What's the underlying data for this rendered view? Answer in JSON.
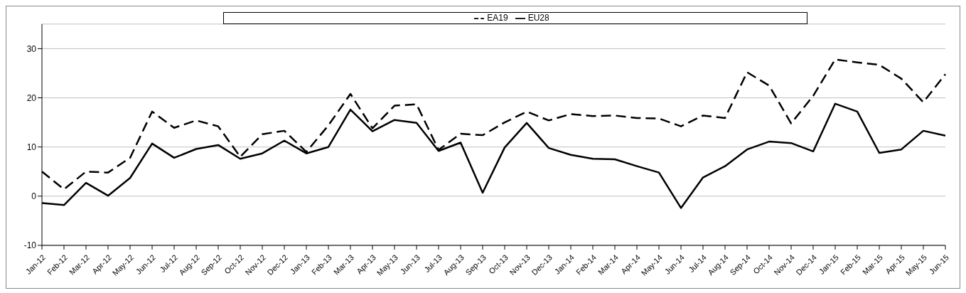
{
  "chart_data": {
    "type": "line",
    "categories": [
      "Jan-12",
      "Feb-12",
      "Mar-12",
      "Apr-12",
      "May-12",
      "Jun-12",
      "Jul-12",
      "Aug-12",
      "Sep-12",
      "Oct-12",
      "Nov-12",
      "Dec-12",
      "Jan-13",
      "Feb-13",
      "Mar-13",
      "Apr-13",
      "May-13",
      "Jun-13",
      "Jul-13",
      "Aug-13",
      "Sep-13",
      "Oct-13",
      "Nov-13",
      "Dec-13",
      "Jan-14",
      "Feb-14",
      "Mar-14",
      "Apr-14",
      "May-14",
      "Jun-14",
      "Jul-14",
      "Aug-14",
      "Sep-14",
      "Oct-14",
      "Nov-14",
      "Dec-14",
      "Jan-15",
      "Feb-15",
      "Mar-15",
      "Apr-15",
      "May-15",
      "Jun-15"
    ],
    "series": [
      {
        "name": "EU28",
        "color": "#000000",
        "line_style": "solid",
        "values": [
          -1.4,
          -1.8,
          2.7,
          0.1,
          3.7,
          10.7,
          7.8,
          9.6,
          10.4,
          7.6,
          8.7,
          11.3,
          8.7,
          10.0,
          17.6,
          13.2,
          15.5,
          14.9,
          9.2,
          10.9,
          0.7,
          9.9,
          14.9,
          9.8,
          8.4,
          7.6,
          7.5,
          6.1,
          4.8,
          -2.4,
          3.8,
          6.1,
          9.5,
          11.1,
          10.8,
          9.1,
          18.8,
          17.2,
          8.8,
          9.5,
          13.3,
          12.3
        ]
      },
      {
        "name": "EA19",
        "color": "#000000",
        "line_style": "dashed",
        "values": [
          5.0,
          1.4,
          5.0,
          4.8,
          7.8,
          17.2,
          13.9,
          15.4,
          14.2,
          8.0,
          12.6,
          13.3,
          9.0,
          14.4,
          20.8,
          13.8,
          18.4,
          18.7,
          9.4,
          12.7,
          12.4,
          15.0,
          17.2,
          15.4,
          16.7,
          16.3,
          16.4,
          15.9,
          15.8,
          14.2,
          16.4,
          15.9,
          25.2,
          22.5,
          14.8,
          20.4,
          27.8,
          27.2,
          26.7,
          23.9,
          19.1,
          24.8
        ]
      }
    ],
    "ylim": [
      -10,
      35
    ],
    "yticks": [
      -10,
      0,
      10,
      20,
      30
    ],
    "grid": "y",
    "legend": "top",
    "marker": "none"
  }
}
